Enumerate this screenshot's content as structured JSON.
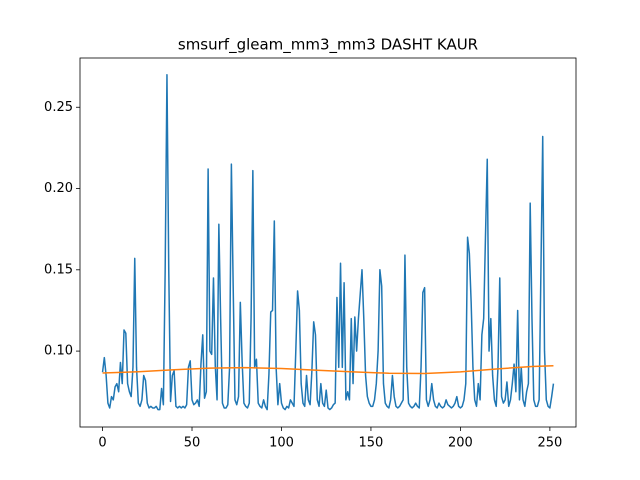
{
  "chart_data": {
    "type": "line",
    "title": "smsurf_gleam_mm3_mm3 DASHT KAUR",
    "xlim": [
      -12.6,
      264.6
    ],
    "xticks": [
      0,
      50,
      100,
      150,
      200,
      250
    ],
    "ylim": [
      0.0533,
      0.2803
    ],
    "yticks": [
      {
        "value": 0.1,
        "label": "0.10"
      },
      {
        "value": 0.15,
        "label": "0.15"
      },
      {
        "value": 0.2,
        "label": "0.20"
      },
      {
        "value": 0.25,
        "label": "0.25"
      }
    ],
    "x": [
      0,
      1,
      2,
      3,
      4,
      5,
      6,
      7,
      8,
      9,
      10,
      11,
      12,
      13,
      14,
      15,
      16,
      17,
      18,
      19,
      20,
      21,
      22,
      23,
      24,
      25,
      26,
      27,
      28,
      29,
      30,
      31,
      32,
      33,
      34,
      35,
      36,
      37,
      38,
      39,
      40,
      41,
      42,
      43,
      44,
      45,
      46,
      47,
      48,
      49,
      50,
      51,
      52,
      53,
      54,
      55,
      56,
      57,
      58,
      59,
      60,
      61,
      62,
      63,
      64,
      65,
      66,
      67,
      68,
      69,
      70,
      71,
      72,
      73,
      74,
      75,
      76,
      77,
      78,
      79,
      80,
      81,
      82,
      83,
      84,
      85,
      86,
      87,
      88,
      89,
      90,
      91,
      92,
      93,
      94,
      95,
      96,
      97,
      98,
      99,
      100,
      101,
      102,
      103,
      104,
      105,
      106,
      107,
      108,
      109,
      110,
      111,
      112,
      113,
      114,
      115,
      116,
      117,
      118,
      119,
      120,
      121,
      122,
      123,
      124,
      125,
      126,
      127,
      128,
      129,
      130,
      131,
      132,
      133,
      134,
      135,
      136,
      137,
      138,
      139,
      140,
      141,
      142,
      143,
      144,
      145,
      146,
      147,
      148,
      149,
      150,
      151,
      152,
      153,
      154,
      155,
      156,
      157,
      158,
      159,
      160,
      161,
      162,
      163,
      164,
      165,
      166,
      167,
      168,
      169,
      170,
      171,
      172,
      173,
      174,
      175,
      176,
      177,
      178,
      179,
      180,
      181,
      182,
      183,
      184,
      185,
      186,
      187,
      188,
      189,
      190,
      191,
      192,
      193,
      194,
      195,
      196,
      197,
      198,
      199,
      200,
      201,
      202,
      203,
      204,
      205,
      206,
      207,
      208,
      209,
      210,
      211,
      212,
      213,
      214,
      215,
      216,
      217,
      218,
      219,
      220,
      221,
      222,
      223,
      224,
      225,
      226,
      227,
      228,
      229,
      230,
      231,
      232,
      233,
      234,
      235,
      236,
      237,
      238,
      239,
      240,
      241,
      242,
      243,
      244,
      245,
      246,
      247,
      248,
      249,
      250,
      251,
      252
    ],
    "series": [
      {
        "color": "#1f77b4",
        "values": [
          0.087,
          0.096,
          0.085,
          0.068,
          0.065,
          0.072,
          0.07,
          0.078,
          0.08,
          0.075,
          0.093,
          0.08,
          0.113,
          0.111,
          0.08,
          0.075,
          0.072,
          0.09,
          0.157,
          0.09,
          0.068,
          0.066,
          0.07,
          0.085,
          0.082,
          0.068,
          0.065,
          0.066,
          0.065,
          0.065,
          0.066,
          0.064,
          0.064,
          0.077,
          0.067,
          0.15,
          0.27,
          0.15,
          0.069,
          0.085,
          0.088,
          0.066,
          0.065,
          0.066,
          0.065,
          0.066,
          0.065,
          0.067,
          0.09,
          0.094,
          0.07,
          0.067,
          0.068,
          0.07,
          0.066,
          0.092,
          0.11,
          0.071,
          0.075,
          0.212,
          0.1,
          0.098,
          0.145,
          0.091,
          0.07,
          0.178,
          0.12,
          0.068,
          0.065,
          0.065,
          0.067,
          0.09,
          0.215,
          0.14,
          0.07,
          0.067,
          0.072,
          0.13,
          0.094,
          0.068,
          0.066,
          0.065,
          0.068,
          0.12,
          0.211,
          0.09,
          0.095,
          0.068,
          0.066,
          0.065,
          0.07,
          0.066,
          0.064,
          0.086,
          0.124,
          0.125,
          0.18,
          0.09,
          0.067,
          0.08,
          0.068,
          0.065,
          0.064,
          0.066,
          0.065,
          0.07,
          0.068,
          0.066,
          0.1,
          0.137,
          0.125,
          0.08,
          0.068,
          0.066,
          0.085,
          0.07,
          0.067,
          0.088,
          0.118,
          0.11,
          0.07,
          0.066,
          0.08,
          0.068,
          0.066,
          0.076,
          0.065,
          0.064,
          0.065,
          0.067,
          0.068,
          0.133,
          0.09,
          0.154,
          0.09,
          0.142,
          0.07,
          0.075,
          0.07,
          0.12,
          0.08,
          0.121,
          0.1,
          0.12,
          0.135,
          0.15,
          0.12,
          0.085,
          0.072,
          0.068,
          0.066,
          0.066,
          0.07,
          0.08,
          0.1,
          0.15,
          0.14,
          0.08,
          0.068,
          0.066,
          0.065,
          0.07,
          0.085,
          0.072,
          0.066,
          0.065,
          0.066,
          0.068,
          0.07,
          0.159,
          0.09,
          0.068,
          0.066,
          0.065,
          0.066,
          0.068,
          0.066,
          0.065,
          0.09,
          0.136,
          0.139,
          0.07,
          0.066,
          0.07,
          0.08,
          0.07,
          0.066,
          0.065,
          0.068,
          0.066,
          0.065,
          0.066,
          0.07,
          0.067,
          0.066,
          0.065,
          0.066,
          0.068,
          0.072,
          0.066,
          0.065,
          0.066,
          0.07,
          0.08,
          0.17,
          0.16,
          0.13,
          0.09,
          0.07,
          0.066,
          0.08,
          0.07,
          0.11,
          0.12,
          0.17,
          0.218,
          0.1,
          0.12,
          0.085,
          0.07,
          0.066,
          0.09,
          0.145,
          0.072,
          0.068,
          0.07,
          0.081,
          0.066,
          0.07,
          0.08,
          0.092,
          0.075,
          0.125,
          0.07,
          0.09,
          0.07,
          0.066,
          0.075,
          0.08,
          0.191,
          0.12,
          0.07,
          0.066,
          0.066,
          0.07,
          0.15,
          0.232,
          0.1,
          0.07,
          0.066,
          0.065,
          0.072,
          0.08
        ]
      },
      {
        "color": "#ff7f0e",
        "x": [
          0,
          20,
          40,
          60,
          80,
          100,
          120,
          140,
          160,
          180,
          200,
          220,
          240,
          252
        ],
        "values": [
          0.0865,
          0.0873,
          0.0885,
          0.0895,
          0.0898,
          0.0893,
          0.0882,
          0.0872,
          0.0864,
          0.0862,
          0.0872,
          0.089,
          0.0905,
          0.091
        ]
      }
    ]
  }
}
